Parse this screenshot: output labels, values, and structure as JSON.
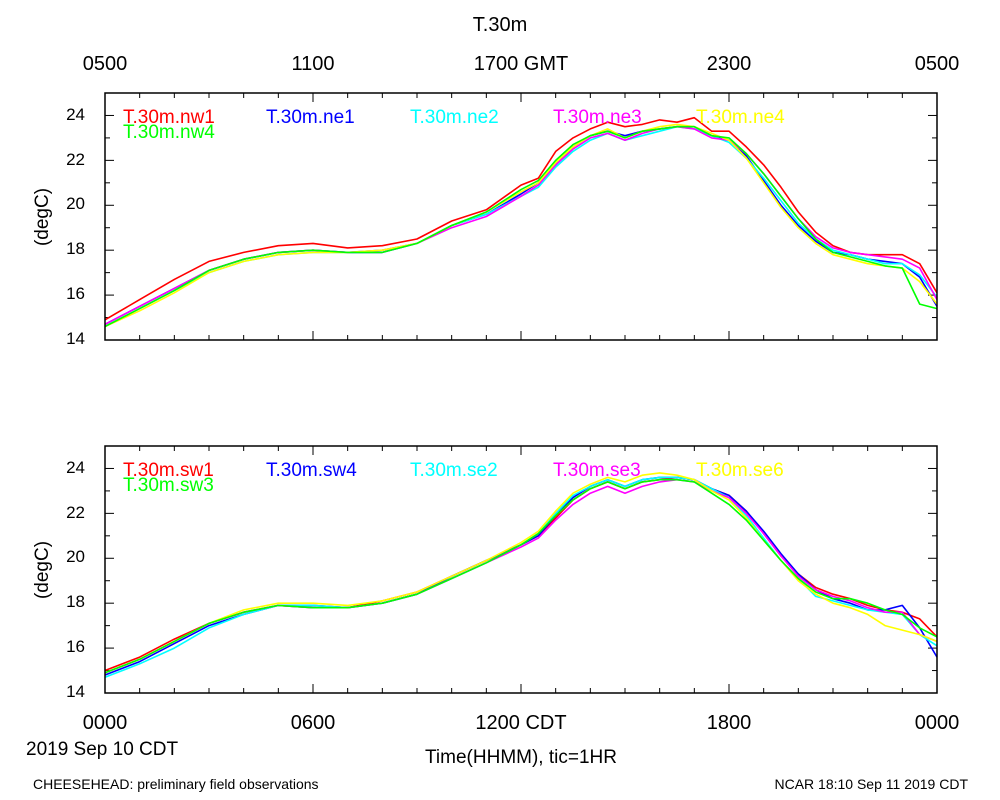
{
  "title": "T.30m",
  "top_axis_labels": [
    "0500",
    "1100",
    "1700 GMT",
    "2300",
    "0500"
  ],
  "bottom_axis_labels": [
    "0000",
    "0600",
    "1200 CDT",
    "1800",
    "0000"
  ],
  "date_label": "2019 Sep 10 CDT",
  "x_axis_label": "Time(HHMM), tic=1HR",
  "footer_left": "CHEESEHEAD: preliminary field observations",
  "footer_right": "NCAR 18:10 Sep 11 2019 CDT",
  "colors": {
    "red": "#ff0000",
    "blue": "#0000ff",
    "cyan": "#00ffff",
    "magenta": "#ff00ff",
    "yellow": "#ffff00",
    "green": "#00ff00"
  },
  "chart_data": [
    {
      "type": "line",
      "panel": "top",
      "ylabel": "(degC)",
      "xlim": [
        0,
        24
      ],
      "ylim": [
        14,
        25
      ],
      "y_ticks": [
        14,
        16,
        18,
        20,
        22,
        24
      ],
      "y_tick_labels": [
        "14",
        "16",
        "18",
        "20",
        "22",
        "24"
      ],
      "x": [
        0,
        1,
        2,
        3,
        4,
        5,
        6,
        7,
        8,
        9,
        10,
        11,
        12,
        12.5,
        13,
        13.5,
        14,
        14.5,
        15,
        15.5,
        16,
        16.5,
        17,
        17.5,
        18,
        18.5,
        19,
        19.5,
        20,
        20.5,
        21,
        21.5,
        22,
        22.5,
        23,
        23.5,
        24
      ],
      "series": [
        {
          "name": "T.30m.nw1",
          "color": "#ff0000",
          "values": [
            14.9,
            15.8,
            16.7,
            17.5,
            17.9,
            18.2,
            18.3,
            18.1,
            18.2,
            18.5,
            19.3,
            19.8,
            20.9,
            21.2,
            22.4,
            23.0,
            23.4,
            23.7,
            23.5,
            23.6,
            23.8,
            23.7,
            23.9,
            23.3,
            23.3,
            22.6,
            21.8,
            20.8,
            19.7,
            18.8,
            18.2,
            17.9,
            17.8,
            17.8,
            17.8,
            17.4,
            16.1
          ]
        },
        {
          "name": "T.30m.ne1",
          "color": "#0000ff",
          "values": [
            14.7,
            15.5,
            16.3,
            17.1,
            17.6,
            17.9,
            18.0,
            17.9,
            17.9,
            18.3,
            19.1,
            19.6,
            20.5,
            21.0,
            21.8,
            22.6,
            23.1,
            23.3,
            23.1,
            23.3,
            23.4,
            23.5,
            23.5,
            23.1,
            22.9,
            22.2,
            21.1,
            20.0,
            19.1,
            18.4,
            17.9,
            17.8,
            17.6,
            17.5,
            17.4,
            16.8,
            15.5
          ]
        },
        {
          "name": "T.30m.ne2",
          "color": "#00ffff",
          "values": [
            14.6,
            15.4,
            16.2,
            17.0,
            17.5,
            17.8,
            17.9,
            17.9,
            18.0,
            18.3,
            19.1,
            19.6,
            20.4,
            20.8,
            21.7,
            22.4,
            22.9,
            23.2,
            22.9,
            23.1,
            23.3,
            23.5,
            23.4,
            23.1,
            22.8,
            22.1,
            21.2,
            20.2,
            19.2,
            18.5,
            18.0,
            17.8,
            17.6,
            17.4,
            17.4,
            16.9,
            15.9
          ]
        },
        {
          "name": "T.30m.ne3",
          "color": "#ff00ff",
          "values": [
            14.7,
            15.5,
            16.3,
            17.1,
            17.6,
            17.9,
            18.0,
            17.9,
            18.0,
            18.3,
            19.0,
            19.5,
            20.4,
            20.9,
            21.8,
            22.5,
            23.0,
            23.2,
            22.9,
            23.2,
            23.4,
            23.5,
            23.4,
            23.0,
            22.9,
            22.3,
            21.4,
            20.4,
            19.4,
            18.6,
            18.1,
            17.9,
            17.8,
            17.7,
            17.6,
            17.2,
            15.8
          ]
        },
        {
          "name": "T.30m.ne4",
          "color": "#ffff00",
          "values": [
            14.6,
            15.3,
            16.1,
            17.0,
            17.5,
            17.8,
            17.9,
            17.9,
            18.0,
            18.3,
            19.1,
            19.7,
            20.6,
            21.0,
            21.9,
            22.6,
            23.1,
            23.4,
            23.0,
            23.3,
            23.5,
            23.6,
            23.5,
            23.2,
            22.9,
            22.1,
            21.0,
            19.9,
            19.0,
            18.3,
            17.8,
            17.6,
            17.4,
            17.3,
            17.2,
            16.6,
            15.6
          ]
        },
        {
          "name": "T.30m.nw4",
          "color": "#00ff00",
          "values": [
            14.6,
            15.4,
            16.2,
            17.1,
            17.6,
            17.9,
            18.0,
            17.9,
            17.9,
            18.3,
            19.1,
            19.7,
            20.7,
            21.1,
            22.0,
            22.7,
            23.1,
            23.3,
            23.0,
            23.3,
            23.4,
            23.5,
            23.5,
            23.1,
            23.0,
            22.3,
            21.4,
            20.4,
            19.4,
            18.5,
            17.9,
            17.7,
            17.5,
            17.3,
            17.2,
            15.6,
            15.4
          ]
        }
      ]
    },
    {
      "type": "line",
      "panel": "bottom",
      "ylabel": "(degC)",
      "xlim": [
        0,
        24
      ],
      "ylim": [
        14,
        25
      ],
      "y_ticks": [
        14,
        16,
        18,
        20,
        22,
        24
      ],
      "y_tick_labels": [
        "14",
        "16",
        "18",
        "20",
        "22",
        "24"
      ],
      "x": [
        0,
        1,
        2,
        3,
        4,
        5,
        6,
        7,
        8,
        9,
        10,
        11,
        12,
        12.5,
        13,
        13.5,
        14,
        14.5,
        15,
        15.5,
        16,
        16.5,
        17,
        17.5,
        18,
        18.5,
        19,
        19.5,
        20,
        20.5,
        21,
        21.5,
        22,
        22.5,
        23,
        23.5,
        24
      ],
      "series": [
        {
          "name": "T.30m.sw1",
          "color": "#ff0000",
          "values": [
            15.0,
            15.6,
            16.4,
            17.1,
            17.6,
            17.9,
            17.8,
            17.8,
            18.1,
            18.5,
            19.2,
            19.9,
            20.6,
            21.0,
            21.8,
            22.6,
            23.1,
            23.4,
            23.1,
            23.4,
            23.5,
            23.6,
            23.5,
            23.1,
            22.8,
            22.1,
            21.1,
            20.1,
            19.3,
            18.7,
            18.4,
            18.2,
            17.9,
            17.7,
            17.6,
            17.3,
            16.5
          ]
        },
        {
          "name": "T.30m.sw4",
          "color": "#0000ff",
          "values": [
            14.8,
            15.4,
            16.2,
            17.0,
            17.5,
            17.9,
            17.9,
            17.8,
            18.0,
            18.4,
            19.2,
            19.9,
            20.6,
            21.0,
            21.9,
            22.7,
            23.2,
            23.5,
            23.2,
            23.5,
            23.6,
            23.6,
            23.5,
            23.1,
            22.8,
            22.1,
            21.2,
            20.2,
            19.3,
            18.6,
            18.2,
            18.0,
            17.7,
            17.7,
            17.9,
            16.9,
            15.6
          ]
        },
        {
          "name": "T.30m.se2",
          "color": "#00ffff",
          "values": [
            14.7,
            15.3,
            16.0,
            16.9,
            17.5,
            17.9,
            17.9,
            17.8,
            18.0,
            18.4,
            19.1,
            19.8,
            20.6,
            21.1,
            22.0,
            22.8,
            23.2,
            23.5,
            23.2,
            23.5,
            23.6,
            23.6,
            23.5,
            23.1,
            22.7,
            21.9,
            20.9,
            19.9,
            19.1,
            18.3,
            18.1,
            17.9,
            17.7,
            17.6,
            17.5,
            16.6,
            16.1
          ]
        },
        {
          "name": "T.30m.se3",
          "color": "#ff00ff",
          "values": [
            14.9,
            15.5,
            16.3,
            17.1,
            17.6,
            17.9,
            17.8,
            17.8,
            18.0,
            18.4,
            19.1,
            19.8,
            20.5,
            20.9,
            21.7,
            22.4,
            22.9,
            23.2,
            22.9,
            23.2,
            23.4,
            23.5,
            23.4,
            23.0,
            22.7,
            22.0,
            21.1,
            20.1,
            19.2,
            18.6,
            18.3,
            18.1,
            17.8,
            17.6,
            17.6,
            16.6,
            16.3
          ]
        },
        {
          "name": "T.30m.se6",
          "color": "#ffff00",
          "values": [
            14.9,
            15.5,
            16.3,
            17.1,
            17.7,
            18.0,
            18.0,
            17.9,
            18.1,
            18.5,
            19.2,
            19.9,
            20.7,
            21.2,
            22.1,
            22.9,
            23.3,
            23.6,
            23.4,
            23.7,
            23.8,
            23.7,
            23.5,
            23.0,
            22.6,
            21.8,
            20.8,
            19.9,
            19.0,
            18.4,
            18.0,
            17.8,
            17.5,
            17.0,
            16.8,
            16.6,
            16.3
          ]
        },
        {
          "name": "T.30m.sw3",
          "color": "#00ff00",
          "values": [
            14.9,
            15.5,
            16.3,
            17.1,
            17.6,
            17.9,
            17.8,
            17.8,
            18.0,
            18.4,
            19.1,
            19.8,
            20.6,
            21.1,
            21.9,
            22.6,
            23.1,
            23.4,
            23.1,
            23.4,
            23.5,
            23.5,
            23.4,
            22.9,
            22.4,
            21.7,
            20.8,
            19.9,
            19.1,
            18.5,
            18.2,
            18.2,
            18.0,
            17.7,
            17.5,
            16.9,
            16.5
          ]
        }
      ]
    }
  ]
}
